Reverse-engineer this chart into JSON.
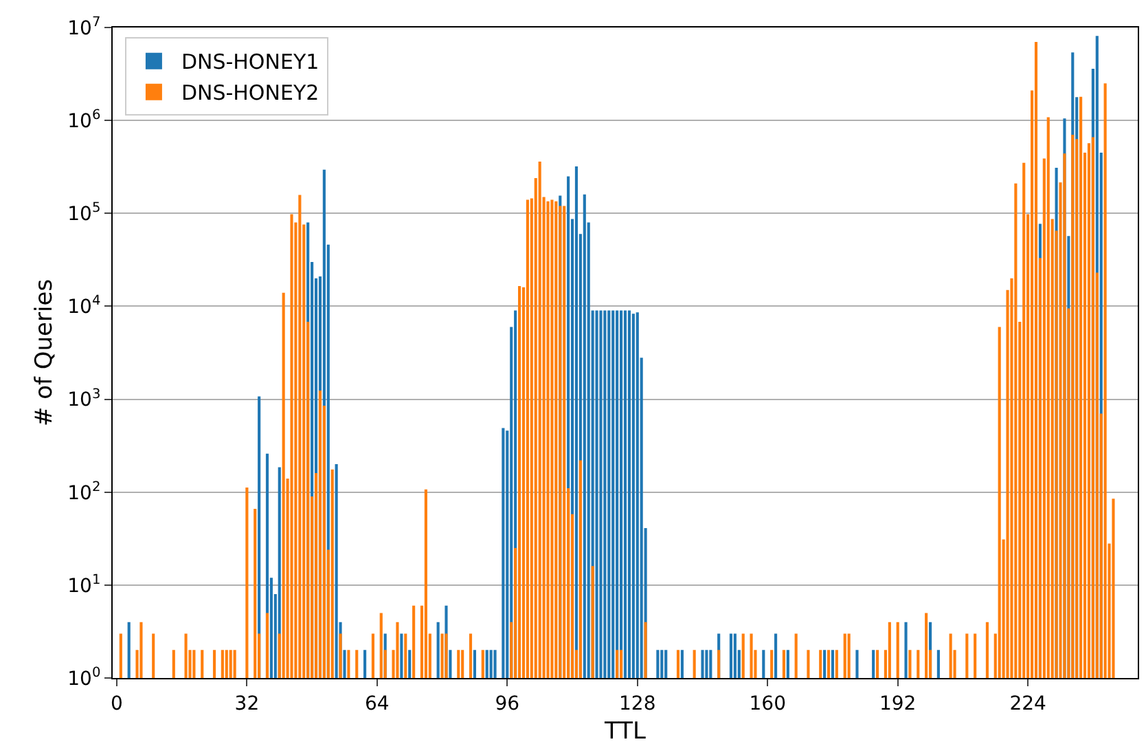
{
  "chart_data": {
    "type": "bar",
    "xlabel": "TTL",
    "ylabel": "# of Queries",
    "xlim": [
      -1,
      251
    ],
    "xticks": [
      0,
      32,
      64,
      96,
      128,
      160,
      192,
      224
    ],
    "ylim": [
      1,
      10000000
    ],
    "yticks": [
      {
        "value": 1,
        "label": "10$^{0}$"
      },
      {
        "value": 10,
        "label": "10$^{1}$"
      },
      {
        "value": 100,
        "label": "10$^{2}$"
      },
      {
        "value": 1000,
        "label": "10$^{3}$"
      },
      {
        "value": 10000,
        "label": "10$^{4}$"
      },
      {
        "value": 100000,
        "label": "10$^{5}$"
      },
      {
        "value": 1000000,
        "label": "10$^{6}$"
      },
      {
        "value": 10000000,
        "label": "10$^{7}$"
      }
    ],
    "log": "y",
    "grid": "y",
    "legend": "top left",
    "series": [
      {
        "name": "DNS-HONEY1",
        "color": "#1f77b4",
        "x": [
          3,
          35,
          37,
          38,
          39,
          40,
          47,
          48,
          49,
          50,
          51,
          52,
          54,
          55,
          56,
          61,
          66,
          70,
          72,
          79,
          81,
          82,
          88,
          91,
          92,
          93,
          95,
          96,
          97,
          98,
          109,
          111,
          112,
          113,
          114,
          115,
          116,
          117,
          118,
          119,
          120,
          121,
          122,
          123,
          124,
          125,
          126,
          127,
          128,
          129,
          130,
          133,
          134,
          135,
          139,
          144,
          145,
          146,
          148,
          151,
          152,
          153,
          159,
          162,
          165,
          174,
          176,
          182,
          186,
          194,
          200,
          202,
          227,
          231,
          233,
          234,
          235,
          236,
          240,
          241,
          242
        ],
        "values": [
          4,
          1070,
          260,
          12,
          8,
          185,
          80000,
          30000,
          20000,
          21000,
          295000,
          46000,
          200,
          4,
          2,
          2,
          3,
          3,
          2,
          4,
          6,
          2,
          2,
          2,
          2,
          2,
          490,
          460,
          6000,
          9000,
          155000,
          250000,
          87000,
          320000,
          60000,
          160000,
          80000,
          9000,
          9000,
          9000,
          9000,
          9000,
          9000,
          9000,
          9000,
          9000,
          9000,
          8300,
          8600,
          2800,
          41,
          2,
          2,
          2,
          2,
          2,
          2,
          2,
          3,
          3,
          3,
          2,
          2,
          3,
          2,
          2,
          2,
          2,
          2,
          4,
          4,
          2,
          77000,
          310000,
          1050000,
          57000,
          5400000,
          1780000,
          3600000,
          8100000,
          450000
        ]
      },
      {
        "name": "DNS-HONEY2",
        "color": "#ff7f0e",
        "x": [
          1,
          5,
          6,
          9,
          14,
          17,
          18,
          19,
          21,
          24,
          26,
          27,
          28,
          29,
          32,
          34,
          35,
          37,
          40,
          41,
          42,
          43,
          44,
          45,
          46,
          47,
          48,
          49,
          50,
          51,
          52,
          53,
          55,
          57,
          59,
          63,
          65,
          66,
          68,
          69,
          71,
          73,
          75,
          76,
          77,
          80,
          81,
          84,
          85,
          87,
          90,
          97,
          98,
          99,
          100,
          101,
          102,
          103,
          104,
          105,
          106,
          107,
          108,
          109,
          110,
          111,
          112,
          113,
          114,
          117,
          123,
          124,
          130,
          138,
          142,
          148,
          154,
          156,
          157,
          161,
          164,
          167,
          170,
          173,
          175,
          177,
          179,
          180,
          187,
          189,
          190,
          192,
          195,
          197,
          199,
          200,
          205,
          206,
          209,
          211,
          214,
          216,
          217,
          218,
          219,
          220,
          221,
          222,
          223,
          224,
          225,
          226,
          227,
          228,
          229,
          230,
          231,
          232,
          233,
          234,
          235,
          236,
          237,
          238,
          239,
          240,
          241,
          242,
          243,
          244,
          245
        ],
        "values": [
          3,
          2,
          4,
          3,
          2,
          3,
          2,
          2,
          2,
          2,
          2,
          2,
          2,
          2,
          112,
          66,
          3,
          5,
          3,
          14000,
          140,
          98000,
          80000,
          158000,
          76000,
          6800,
          90,
          160,
          1240,
          850,
          24,
          175,
          3,
          2,
          2,
          3,
          5,
          2,
          2,
          4,
          3,
          6,
          6,
          107,
          3,
          3,
          3,
          2,
          2,
          3,
          2,
          4,
          25,
          16500,
          16000,
          140000,
          145000,
          240000,
          360000,
          150000,
          135000,
          140000,
          135000,
          120000,
          120000,
          110,
          58,
          2,
          220,
          16,
          2,
          2,
          4,
          2,
          2,
          2,
          3,
          3,
          2,
          2,
          2,
          3,
          2,
          2,
          2,
          2,
          3,
          3,
          2,
          2,
          4,
          4,
          2,
          2,
          5,
          2,
          3,
          2,
          3,
          3,
          4,
          3,
          6000,
          31,
          15000,
          20000,
          210000,
          6800,
          350000,
          98000,
          2100000,
          7000000,
          33000,
          390000,
          1080000,
          87000,
          65000,
          215000,
          440000,
          9500,
          700000,
          630000,
          1800000,
          450000,
          570000,
          660000,
          23000,
          700,
          2500000,
          28,
          85
        ]
      }
    ]
  }
}
